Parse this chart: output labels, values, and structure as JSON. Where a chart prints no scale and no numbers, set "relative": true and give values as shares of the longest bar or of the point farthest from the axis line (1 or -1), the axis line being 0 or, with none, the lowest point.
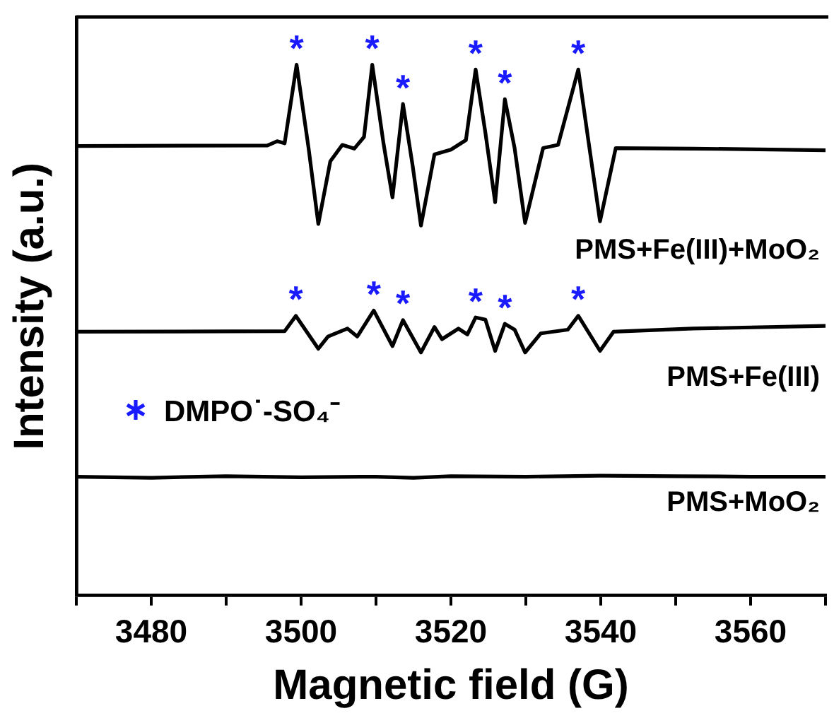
{
  "chart_data": {
    "type": "line",
    "relative": true,
    "xlabel": "Magnetic field (G)",
    "ylabel": "Intensity (a.u.)",
    "xlim": [
      3470,
      3570
    ],
    "xticks": [
      {
        "value": 3470,
        "label": null
      },
      3480,
      {
        "value": 3490,
        "label": null
      },
      3500,
      {
        "value": 3510,
        "label": null
      },
      3520,
      {
        "value": 3530,
        "label": null
      },
      3540,
      {
        "value": 3550,
        "label": null
      },
      3560,
      {
        "value": 3570,
        "label": null
      }
    ],
    "grid": false,
    "legend": false,
    "marker": "none",
    "line_style": "solid",
    "series": [
      {
        "name": "PMS+Fe(III)+MoO₂",
        "color": "#000000",
        "x": [
          3470,
          3495.5,
          3496.8,
          3497.8,
          3499.4,
          3501.0,
          3502.3,
          3503.9,
          3505.5,
          3507.1,
          3508.4,
          3509.5,
          3511.0,
          3512.2,
          3513.6,
          3514.9,
          3516.0,
          3517.8,
          3520.0,
          3522.0,
          3523.3,
          3524.6,
          3525.9,
          3527.2,
          3528.5,
          3529.9,
          3532.3,
          3534.3,
          3537.0,
          3538.4,
          3539.9,
          3542.0,
          3552.3,
          3570
        ],
        "values": [
          0.847,
          0.848,
          0.856,
          0.852,
          1.0,
          0.843,
          0.7,
          0.818,
          0.849,
          0.842,
          0.864,
          1.0,
          0.852,
          0.75,
          0.926,
          0.809,
          0.697,
          0.831,
          0.84,
          0.858,
          0.991,
          0.872,
          0.741,
          0.935,
          0.843,
          0.702,
          0.843,
          0.849,
          0.991,
          0.852,
          0.705,
          0.843,
          0.842,
          0.839
        ]
      },
      {
        "name": "PMS+Fe(III)",
        "color": "#000000",
        "x": [
          3470,
          3497.8,
          3499.3,
          3502.3,
          3503.6,
          3506.2,
          3507.5,
          3509.7,
          3512.2,
          3513.6,
          3516.0,
          3517.8,
          3518.8,
          3521.0,
          3522.2,
          3523.3,
          3524.6,
          3525.9,
          3527.2,
          3528.5,
          3529.9,
          3532.0,
          3535.6,
          3537.0,
          3539.9,
          3541.7,
          3552.3,
          3570
        ],
        "values": [
          0.497,
          0.498,
          0.527,
          0.465,
          0.488,
          0.503,
          0.488,
          0.537,
          0.47,
          0.519,
          0.458,
          0.506,
          0.483,
          0.503,
          0.492,
          0.524,
          0.52,
          0.461,
          0.512,
          0.501,
          0.458,
          0.494,
          0.501,
          0.527,
          0.461,
          0.497,
          0.503,
          0.508
        ]
      },
      {
        "name": "PMS+MoO₂",
        "color": "#000000",
        "x": [
          3470,
          3480,
          3490,
          3500,
          3510,
          3515,
          3520,
          3530,
          3540,
          3550,
          3560,
          3570
        ],
        "values": [
          0.224,
          0.222,
          0.225,
          0.223,
          0.224,
          0.222,
          0.225,
          0.224,
          0.226,
          0.225,
          0.224,
          0.224
        ]
      }
    ],
    "annotations": [
      {
        "text": "*",
        "x": 3499.4,
        "y": 1.0
      },
      {
        "text": "*",
        "x": 3509.5,
        "y": 1.0
      },
      {
        "text": "*",
        "x": 3513.6,
        "y": 0.926
      },
      {
        "text": "*",
        "x": 3523.3,
        "y": 0.991
      },
      {
        "text": "*",
        "x": 3527.2,
        "y": 0.935
      },
      {
        "text": "*",
        "x": 3537.0,
        "y": 0.991
      },
      {
        "text": "*",
        "x": 3499.3,
        "y": 0.527
      },
      {
        "text": "*",
        "x": 3509.7,
        "y": 0.537
      },
      {
        "text": "*",
        "x": 3513.6,
        "y": 0.519
      },
      {
        "text": "*",
        "x": 3523.3,
        "y": 0.524
      },
      {
        "text": "*",
        "x": 3527.2,
        "y": 0.512
      },
      {
        "text": "*",
        "x": 3537.0,
        "y": 0.527
      },
      "DMPO˙-SO₄⁻"
    ]
  }
}
